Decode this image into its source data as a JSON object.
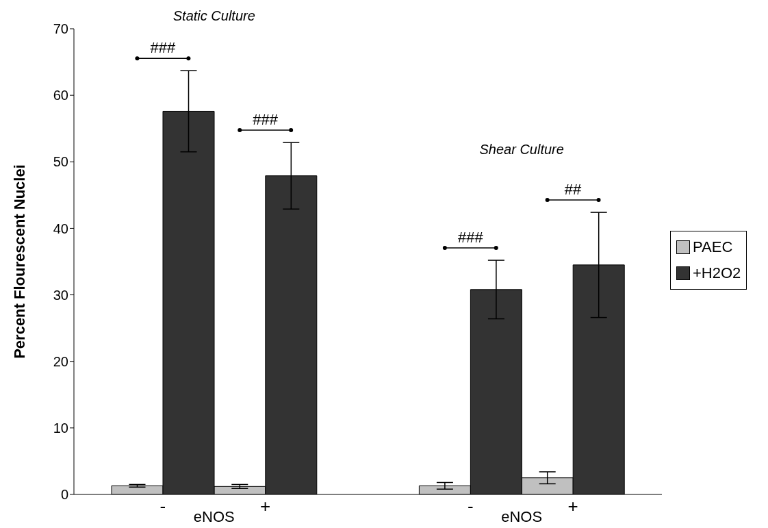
{
  "chart_data": {
    "type": "bar",
    "ylabel": "Percent Flourescent Nuclei",
    "categories": [
      "-",
      "+",
      null,
      "-",
      "+"
    ],
    "series": [
      {
        "name": "PAEC",
        "color": "#c0c0c0",
        "values": [
          1.3,
          1.2,
          null,
          1.3,
          2.5
        ],
        "errors": [
          0.2,
          0.3,
          null,
          0.5,
          0.9
        ]
      },
      {
        "name": "+H2O2",
        "color": "#333333",
        "values": [
          57.6,
          47.9,
          null,
          30.8,
          34.5
        ],
        "errors": [
          6.1,
          5.0,
          null,
          4.4,
          7.9
        ]
      }
    ],
    "ylim": [
      0,
      70
    ],
    "yticks": [
      0,
      10,
      20,
      30,
      40,
      50,
      60,
      70
    ],
    "legend": "right",
    "annotations": [
      "Static Culture",
      "Shear Culture",
      "eNOS",
      "eNOS",
      "###",
      "###",
      "###",
      "##"
    ]
  }
}
